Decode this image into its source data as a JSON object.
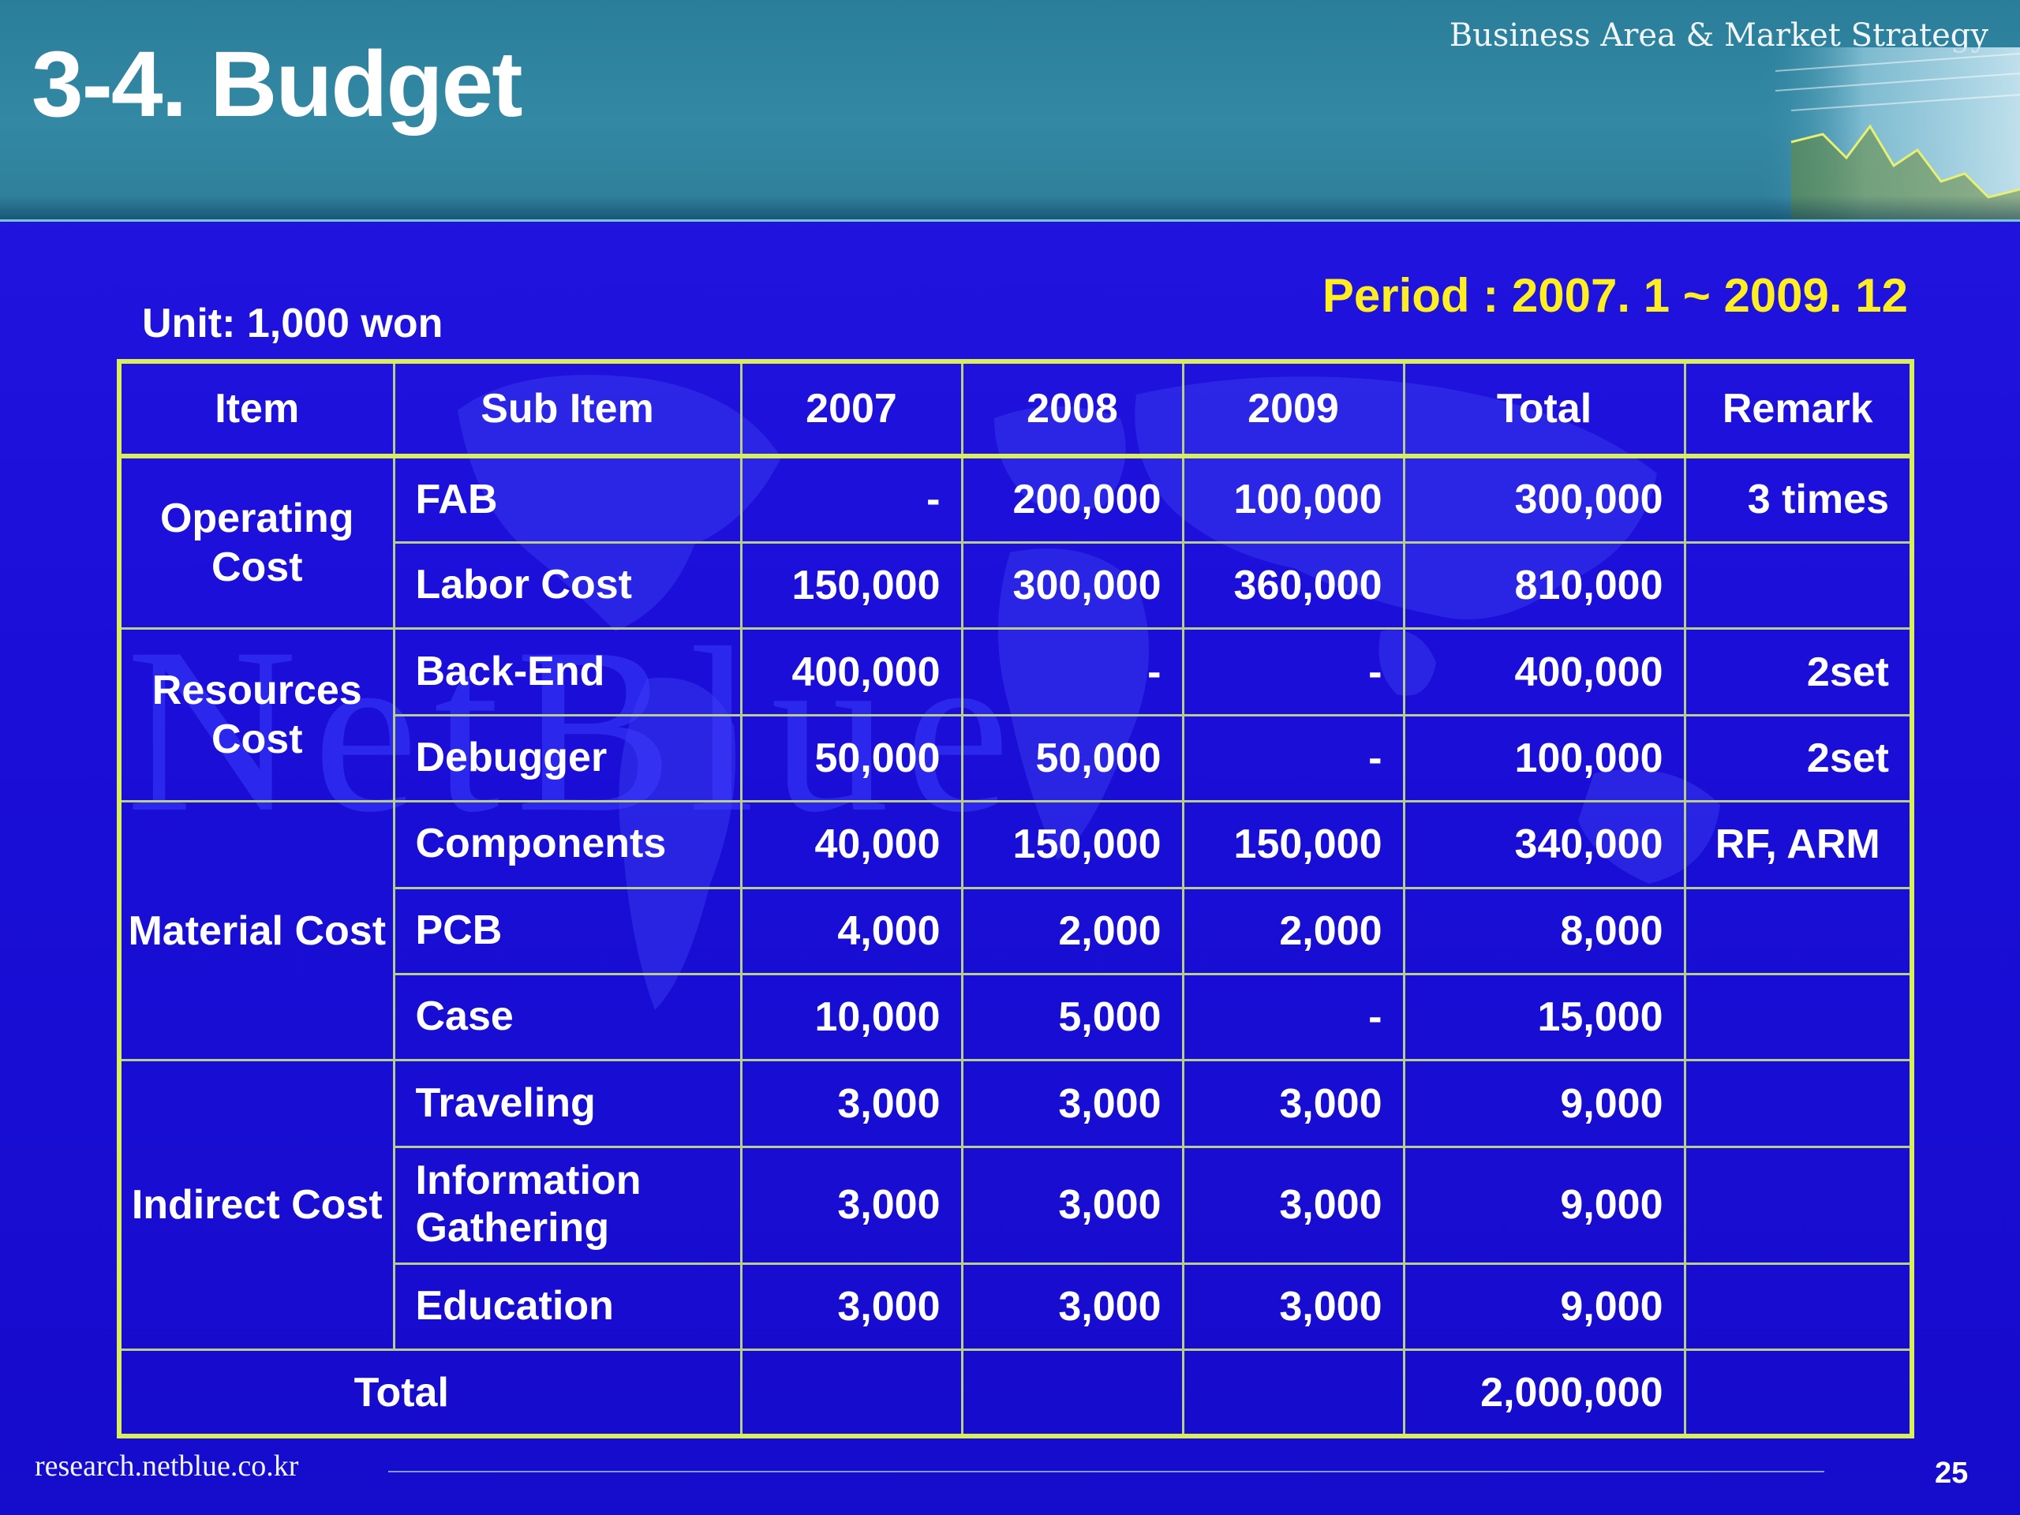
{
  "header": {
    "title": "3-4. Budget",
    "section": "Business Area & Market Strategy"
  },
  "watermark": "NetBlue",
  "unit": "Unit: 1,000 won",
  "period": "Period : 2007. 1 ~ 2009. 12",
  "table": {
    "headers": [
      "Item",
      "Sub Item",
      "2007",
      "2008",
      "2009",
      "Total",
      "Remark"
    ],
    "groups": [
      {
        "item": "Operating Cost",
        "rows": [
          {
            "sub": "FAB",
            "y2007": "-",
            "y2008": "200,000",
            "y2009": "100,000",
            "total": "300,000",
            "remark": "3 times"
          },
          {
            "sub": "Labor Cost",
            "y2007": "150,000",
            "y2008": "300,000",
            "y2009": "360,000",
            "total": "810,000",
            "remark": ""
          }
        ]
      },
      {
        "item": "Resources Cost",
        "rows": [
          {
            "sub": "Back-End",
            "y2007": "400,000",
            "y2008": "-",
            "y2009": "-",
            "total": "400,000",
            "remark": "2set"
          },
          {
            "sub": "Debugger",
            "y2007": "50,000",
            "y2008": "50,000",
            "y2009": "-",
            "total": "100,000",
            "remark": "2set"
          }
        ]
      },
      {
        "item": "Material Cost",
        "rows": [
          {
            "sub": "Components",
            "y2007": "40,000",
            "y2008": "150,000",
            "y2009": "150,000",
            "total": "340,000",
            "remark": "RF, ARM"
          },
          {
            "sub": "PCB",
            "y2007": "4,000",
            "y2008": "2,000",
            "y2009": "2,000",
            "total": "8,000",
            "remark": ""
          },
          {
            "sub": "Case",
            "y2007": "10,000",
            "y2008": "5,000",
            "y2009": "-",
            "total": "15,000",
            "remark": ""
          }
        ]
      },
      {
        "item": "Indirect Cost",
        "rows": [
          {
            "sub": "Traveling",
            "y2007": "3,000",
            "y2008": "3,000",
            "y2009": "3,000",
            "total": "9,000",
            "remark": ""
          },
          {
            "sub": "Information Gathering",
            "y2007": "3,000",
            "y2008": "3,000",
            "y2009": "3,000",
            "total": "9,000",
            "remark": ""
          },
          {
            "sub": "Education",
            "y2007": "3,000",
            "y2008": "3,000",
            "y2009": "3,000",
            "total": "9,000",
            "remark": ""
          }
        ]
      }
    ],
    "total": {
      "label": "Total",
      "value": "2,000,000"
    }
  },
  "footer": {
    "url": "research.netblue.co.kr",
    "page": "25"
  },
  "colors": {
    "background": "#1a10d6",
    "header": "#3388a4",
    "period_text": "#ffee22",
    "table_border": "#d8ee5a"
  }
}
